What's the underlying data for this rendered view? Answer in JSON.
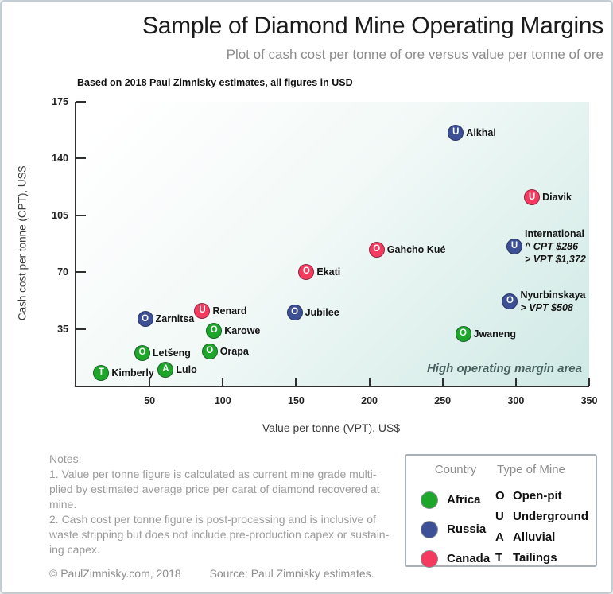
{
  "page": {
    "title": "Sample of Diamond Mine Operating Margins",
    "subtitle": "Plot of cash cost per tonne of ore versus value per tonne of ore",
    "basis_note": "Based on 2018 Paul Zimnisky estimates, all figures in USD",
    "footer": {
      "copyright": "© PaulZimnisky.com, 2018",
      "source": "Source: Paul Zimnisky estimates."
    }
  },
  "colors": {
    "Africa": "#1ea62b",
    "Russia": "#3d4f95",
    "Canada": "#f43a5e",
    "plot_bg_end": "#cfe9e5",
    "axis": "#2f2f2f"
  },
  "notes": {
    "lines": [
      "Notes:",
      "1. Value per tonne figure is calculated as current mine grade multi-",
      "plied by estimated average price per carat of diamond recovered at",
      "mine.",
      "2. Cash cost per tonne figure is post-processing and is inclusive of",
      "waste stripping but does not include pre-production capex or sustain-",
      "ing capex."
    ]
  },
  "chart_data": {
    "type": "scatter",
    "title": "Sample of Diamond Mine Operating Margins",
    "subtitle": "Plot of cash cost per tonne of ore versus value per tonne of ore",
    "xlabel": "Value per tonne (VPT), US$",
    "ylabel": "Cash cost per tonne (CPT), US$",
    "xlim": [
      0,
      350
    ],
    "ylim": [
      0,
      175
    ],
    "xticks": [
      50,
      100,
      150,
      200,
      250,
      300,
      350
    ],
    "yticks": [
      35,
      70,
      105,
      140,
      175
    ],
    "grid": false,
    "annotation": "High operating margin area",
    "points": [
      {
        "name": "Kimberly",
        "country": "Africa",
        "mine_type": "T",
        "vpt": 17,
        "cpt": 8,
        "extra_lines": []
      },
      {
        "name": "Lulo",
        "country": "Africa",
        "mine_type": "A",
        "vpt": 61,
        "cpt": 10,
        "extra_lines": []
      },
      {
        "name": "Letšeng",
        "country": "Africa",
        "mine_type": "O",
        "vpt": 45,
        "cpt": 20,
        "extra_lines": []
      },
      {
        "name": "Orapa",
        "country": "Africa",
        "mine_type": "O",
        "vpt": 91,
        "cpt": 21,
        "extra_lines": []
      },
      {
        "name": "Karowe",
        "country": "Africa",
        "mine_type": "O",
        "vpt": 94,
        "cpt": 34,
        "extra_lines": []
      },
      {
        "name": "Zarnitsa",
        "country": "Russia",
        "mine_type": "O",
        "vpt": 47,
        "cpt": 41,
        "extra_lines": []
      },
      {
        "name": "Renard",
        "country": "Canada",
        "mine_type": "U",
        "vpt": 86,
        "cpt": 46,
        "extra_lines": []
      },
      {
        "name": "Jubilee",
        "country": "Russia",
        "mine_type": "O",
        "vpt": 149,
        "cpt": 45,
        "extra_lines": []
      },
      {
        "name": "Ekati",
        "country": "Canada",
        "mine_type": "O",
        "vpt": 157,
        "cpt": 70,
        "extra_lines": []
      },
      {
        "name": "Gahcho Kué",
        "country": "Canada",
        "mine_type": "O",
        "vpt": 205,
        "cpt": 84,
        "extra_lines": []
      },
      {
        "name": "Jwaneng",
        "country": "Africa",
        "mine_type": "O",
        "vpt": 264,
        "cpt": 32,
        "extra_lines": []
      },
      {
        "name": "Nyurbinskaya",
        "country": "Russia",
        "mine_type": "O",
        "vpt": 296,
        "cpt": 52,
        "extra_lines": [
          "> VPT $508"
        ]
      },
      {
        "name": "International",
        "country": "Russia",
        "mine_type": "U",
        "vpt": 299,
        "cpt": 86,
        "extra_lines": [
          "^ CPT $286",
          "> VPT $1,372"
        ]
      },
      {
        "name": "Diavik",
        "country": "Canada",
        "mine_type": "U",
        "vpt": 311,
        "cpt": 116,
        "extra_lines": []
      },
      {
        "name": "Aikhal",
        "country": "Russia",
        "mine_type": "U",
        "vpt": 259,
        "cpt": 156,
        "extra_lines": []
      }
    ],
    "legend": {
      "country_header": "Country",
      "type_header": "Type of Mine",
      "countries": [
        {
          "label": "Africa",
          "color": "#1ea62b"
        },
        {
          "label": "Russia",
          "color": "#3d4f95"
        },
        {
          "label": "Canada",
          "color": "#f43a5e"
        }
      ],
      "types": [
        {
          "symbol": "O",
          "label": "Open-pit"
        },
        {
          "symbol": "U",
          "label": "Underground"
        },
        {
          "symbol": "A",
          "label": "Alluvial"
        },
        {
          "symbol": "T",
          "label": "Tailings"
        }
      ],
      "position": "bottom-right"
    }
  }
}
